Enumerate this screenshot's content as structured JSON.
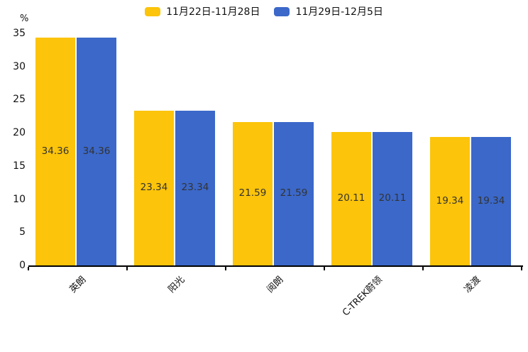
{
  "chart_data": {
    "type": "bar",
    "title": "",
    "ylabel": "%",
    "xlabel": "",
    "ylim": [
      0,
      35
    ],
    "yticks": [
      0,
      5,
      10,
      15,
      20,
      25,
      30,
      35
    ],
    "grid": false,
    "legend_position": "top-center",
    "categories": [
      "英朗",
      "阳光",
      "阅朗",
      "C-TREK蔚领",
      "凌渡"
    ],
    "series": [
      {
        "name": "11月22日-11月28日",
        "color": "#FCC40A",
        "values": [
          34.36,
          23.34,
          21.59,
          20.11,
          19.34
        ]
      },
      {
        "name": "11月29日-12月5日",
        "color": "#3B68C9",
        "values": [
          34.36,
          23.34,
          21.59,
          20.11,
          19.34
        ]
      }
    ],
    "value_labels_shown": true,
    "value_label_color": "#333333",
    "axis_color": "#000000",
    "text_color": "#111111",
    "background_color": "#ffffff"
  }
}
